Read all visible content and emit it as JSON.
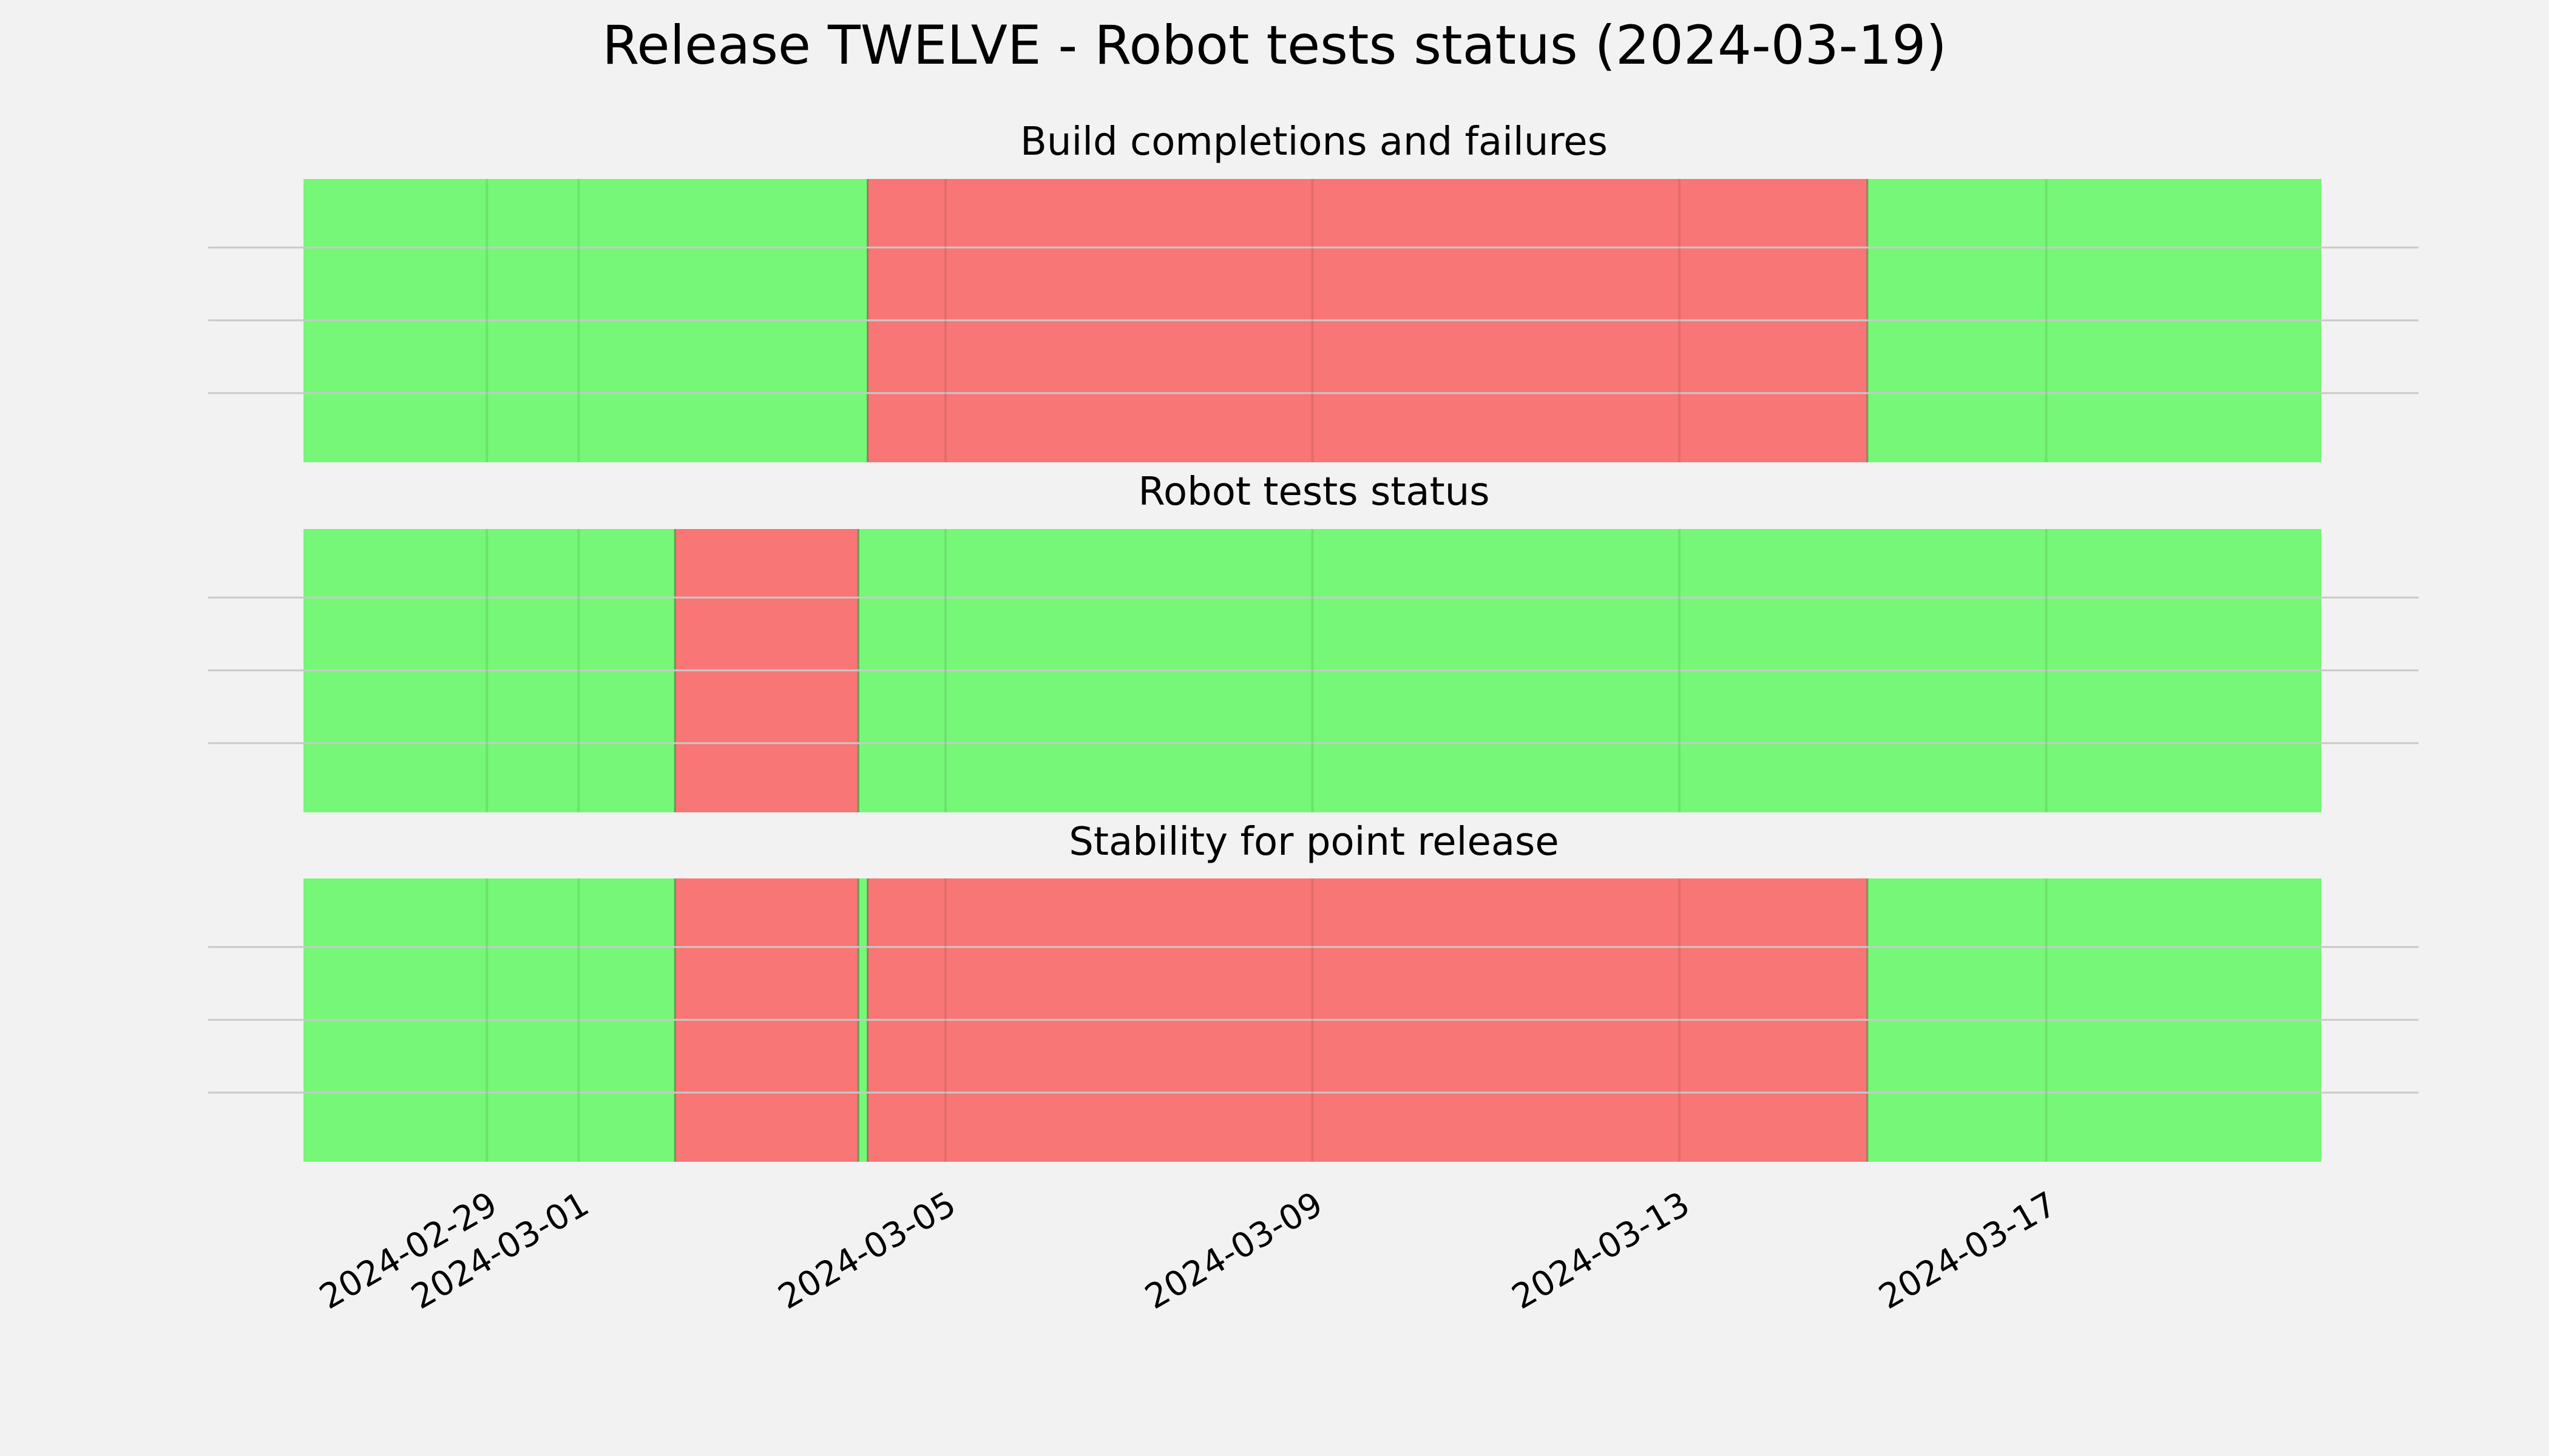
{
  "figure": {
    "title": "Release TWELVE - Robot tests status (2024-03-19)"
  },
  "colors": {
    "background": "#f2f2f2",
    "success": "#76f777",
    "failure": "#f87675",
    "grid": "#c9c9c9"
  },
  "chart_data": [
    {
      "type": "timeline",
      "title": "Build completions and failures",
      "xlim": [
        "2024-02-27",
        "2024-03-20"
      ],
      "xticks": [
        "2024-02-29",
        "2024-03-01",
        "2024-03-05",
        "2024-03-09",
        "2024-03-13",
        "2024-03-17"
      ],
      "grid": true,
      "segments": [
        {
          "start": "2024-02-27",
          "end": "2024-03-04.15",
          "status": "success"
        },
        {
          "start": "2024-03-04.15",
          "end": "2024-03-15.05",
          "status": "failure"
        },
        {
          "start": "2024-03-15.05",
          "end": "2024-03-20",
          "status": "success"
        }
      ]
    },
    {
      "type": "timeline",
      "title": "Robot tests status",
      "xlim": [
        "2024-02-27",
        "2024-03-20"
      ],
      "xticks": [
        "2024-02-29",
        "2024-03-01",
        "2024-03-05",
        "2024-03-09",
        "2024-03-13",
        "2024-03-17"
      ],
      "grid": true,
      "segments": [
        {
          "start": "2024-02-27",
          "end": "2024-03-02.05",
          "status": "success"
        },
        {
          "start": "2024-03-02.05",
          "end": "2024-03-04.05",
          "status": "failure"
        },
        {
          "start": "2024-03-04.05",
          "end": "2024-03-20",
          "status": "success"
        }
      ]
    },
    {
      "type": "timeline",
      "title": "Stability for point release",
      "xlim": [
        "2024-02-27",
        "2024-03-20"
      ],
      "xticks": [
        "2024-02-29",
        "2024-03-01",
        "2024-03-05",
        "2024-03-09",
        "2024-03-13",
        "2024-03-17"
      ],
      "grid": true,
      "segments": [
        {
          "start": "2024-02-27",
          "end": "2024-03-02.05",
          "status": "success"
        },
        {
          "start": "2024-03-02.05",
          "end": "2024-03-04.05",
          "status": "failure"
        },
        {
          "start": "2024-03-04.05",
          "end": "2024-03-04.15",
          "status": "success"
        },
        {
          "start": "2024-03-04.15",
          "end": "2024-03-15.05",
          "status": "failure"
        },
        {
          "start": "2024-03-15.05",
          "end": "2024-03-20",
          "status": "success"
        }
      ]
    }
  ]
}
